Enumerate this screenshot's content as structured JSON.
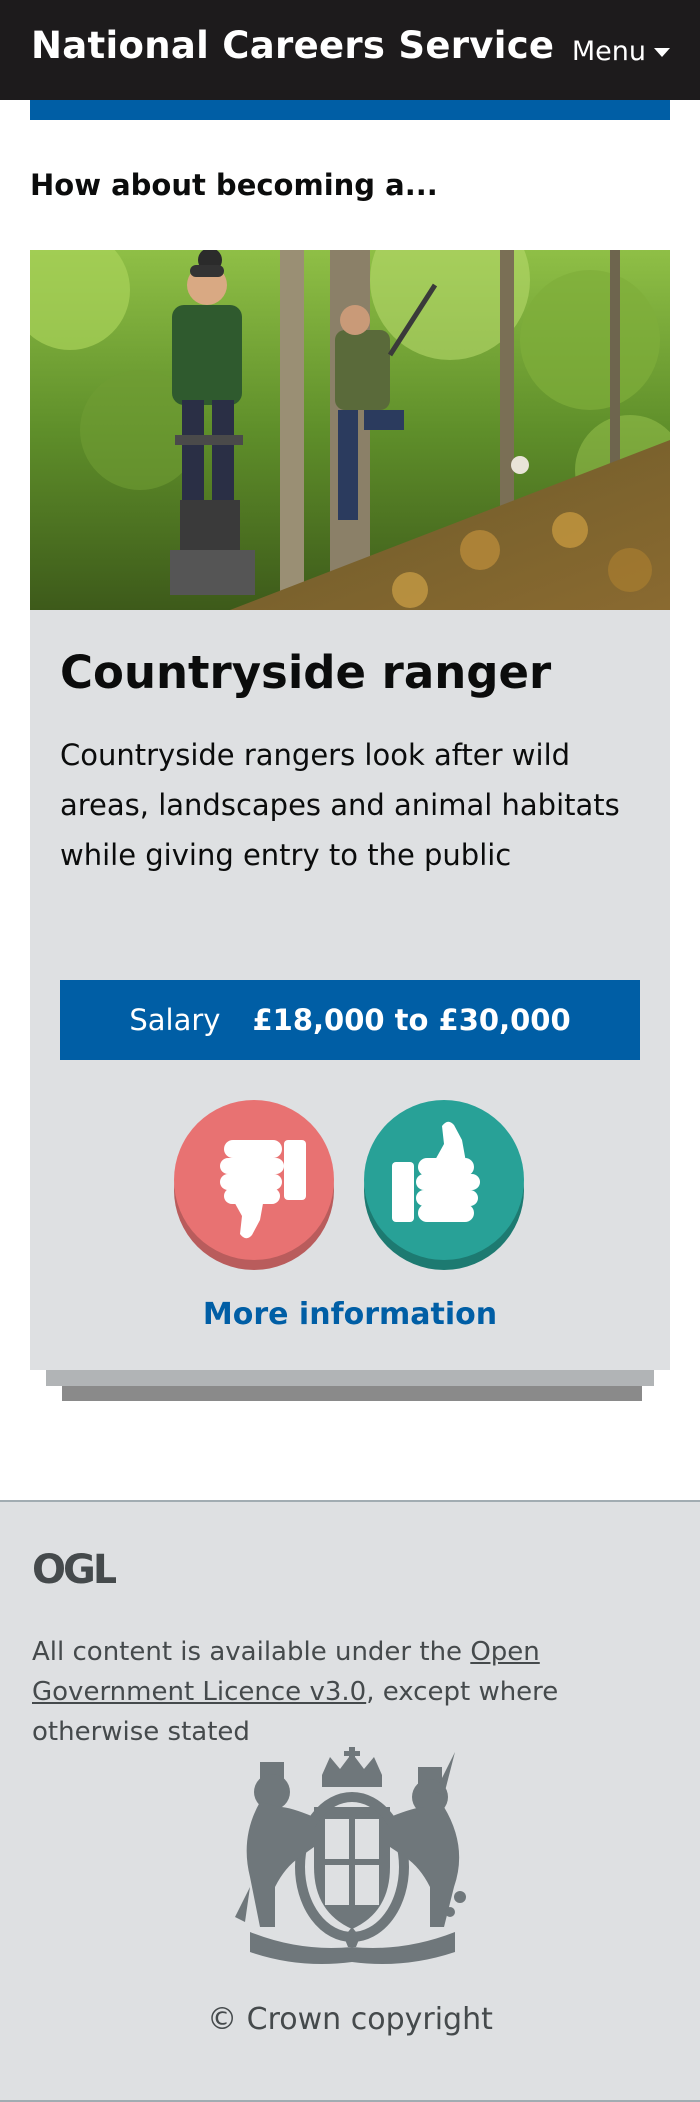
{
  "header": {
    "site_title": "National Careers Service",
    "menu_label": "Menu"
  },
  "colors": {
    "header_bg": "#1d1b1c",
    "brand_blue": "#005ea5",
    "card_bg": "#dee0e2",
    "dislike": "#e87272",
    "like": "#28a197"
  },
  "section": {
    "heading": "How about becoming a..."
  },
  "card": {
    "photo_icon": "countryside-ranger-photo",
    "title": "Countryside ranger",
    "description": "Countryside rangers look after wild areas, landscapes and animal habitats while giving entry to the public",
    "salary_label": "Salary",
    "salary_value": "£18,000 to £30,000",
    "dislike_icon": "thumbs-down-icon",
    "like_icon": "thumbs-up-icon",
    "more_info_label": "More information"
  },
  "footer": {
    "ogl_logo_text": "OGL",
    "licence_prefix": "All content is available under the ",
    "licence_link": "Open Government Licence v3.0",
    "licence_suffix": ", except where otherwise stated",
    "crest_icon": "royal-coat-of-arms-icon",
    "copyright": "© Crown copyright"
  }
}
